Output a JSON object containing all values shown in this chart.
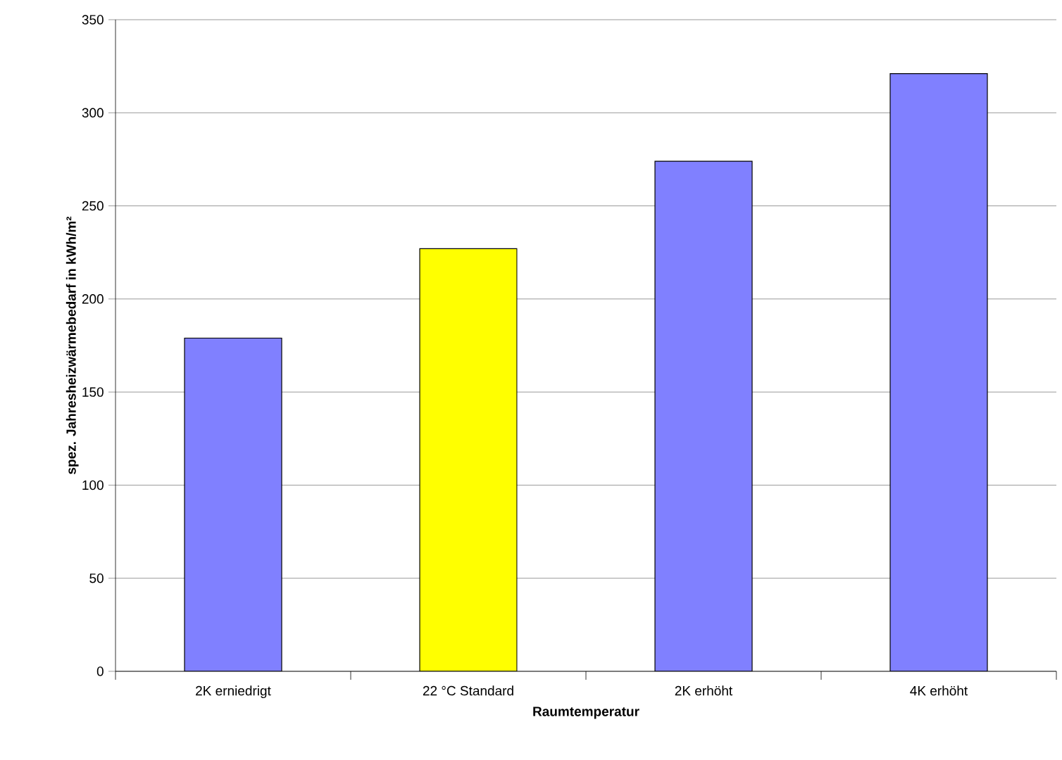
{
  "chart_data": {
    "type": "bar",
    "xlabel": "Raumtemperatur",
    "ylabel": "spez. Jahresheizwärmebedarf in kWh/m²",
    "categories": [
      "2K erniedrigt",
      "22 °C Standard",
      "2K erhöht",
      "4K erhöht"
    ],
    "values": [
      179,
      227,
      274,
      321
    ],
    "colors": [
      "#8080ff",
      "#ffff00",
      "#8080ff",
      "#8080ff"
    ],
    "ylim": [
      0,
      350
    ],
    "yticks": [
      0,
      50,
      100,
      150,
      200,
      250,
      300,
      350
    ],
    "grid": "y"
  }
}
